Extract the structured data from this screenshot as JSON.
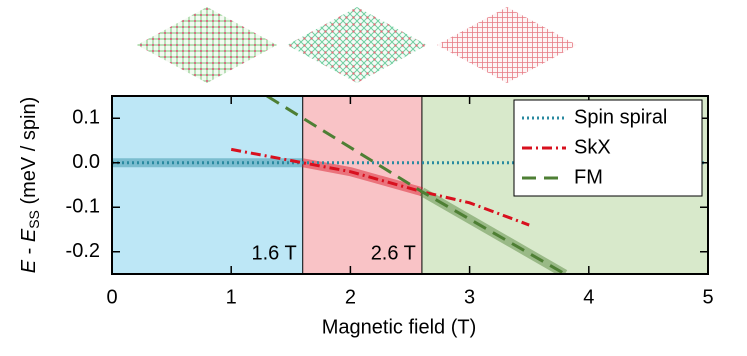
{
  "chart_data": {
    "type": "line",
    "xlabel": "Magnetic field (T)",
    "ylabel": [
      "E",
      " - ",
      "E",
      "SS",
      " (meV / spin)"
    ],
    "xlim": [
      0,
      5
    ],
    "ylim": [
      -0.25,
      0.15
    ],
    "xticks": [
      0,
      1,
      2,
      3,
      4,
      5
    ],
    "yticks": [
      0.1,
      {
        "value": 0,
        "label": "0.0"
      },
      -0.1,
      -0.2
    ],
    "regions": [
      {
        "start": 0,
        "end": 1.6,
        "color": "#bde7f6",
        "ground": 0,
        "label": null
      },
      {
        "start": 1.6,
        "end": 2.6,
        "color": "#f9c3c6",
        "ground": 1,
        "label": "1.6 T"
      },
      {
        "start": 2.6,
        "end": 5,
        "color": "#d8e9cb",
        "ground": 2,
        "label": "2.6 T"
      }
    ],
    "series": [
      {
        "name": "Spin spiral",
        "color": "#2a8aa0",
        "dash": "2,3",
        "x": [
          0,
          5
        ],
        "values": [
          0,
          0
        ]
      },
      {
        "name": "SkX",
        "color": "#d8101e",
        "dash": "10,4,2,4",
        "x": [
          1,
          1.6,
          2,
          2.6,
          3,
          3.5
        ],
        "values": [
          0.03,
          0,
          -0.02,
          -0.065,
          -0.09,
          -0.14
        ]
      },
      {
        "name": "FM",
        "color": "#4e7f34",
        "dash": "14,8",
        "x": [
          1.3,
          2.6,
          3.8
        ],
        "values": [
          0.15,
          -0.065,
          -0.25
        ]
      }
    ],
    "legend": "top-right"
  }
}
